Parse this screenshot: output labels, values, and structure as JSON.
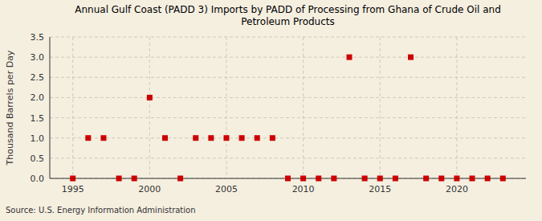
{
  "chart_data": {
    "type": "scatter",
    "title": "Annual Gulf Coast (PADD 3) Imports by PADD of Processing from Ghana of Crude Oil and\nPetroleum Products",
    "y_label": "Thousand Barrels per Day",
    "annotation": "Source: U.S. Energy Information Administration",
    "x": [
      1995,
      1996,
      1997,
      1998,
      1999,
      2000,
      2001,
      2002,
      2003,
      2004,
      2005,
      2006,
      2007,
      2008,
      2009,
      2010,
      2011,
      2012,
      2013,
      2014,
      2015,
      2016,
      2017,
      2018,
      2019,
      2020,
      2021,
      2022,
      2023
    ],
    "values": [
      0.0,
      1.0,
      1.0,
      0.0,
      0.0,
      2.0,
      1.0,
      0.0,
      1.0,
      1.0,
      1.0,
      1.0,
      1.0,
      1.0,
      0.0,
      0.0,
      0.0,
      0.0,
      3.0,
      0.0,
      0.0,
      0.0,
      3.0,
      0.0,
      0.0,
      0.0,
      0.0,
      0.0,
      0.0
    ],
    "color": "#cc0000",
    "marker": "square",
    "xlim": [
      1993.5,
      2024.5
    ],
    "ylim": [
      0.0,
      3.5
    ],
    "xticks": [
      1995,
      2000,
      2005,
      2010,
      2015,
      2020
    ],
    "yticks": [
      {
        "value": 0.0,
        "label": "0.0"
      },
      0.5,
      {
        "value": 1.0,
        "label": "1.0"
      },
      1.5,
      {
        "value": 2.0,
        "label": "2.0"
      },
      2.5,
      {
        "value": 3.0,
        "label": "3.0"
      },
      3.5
    ],
    "grid": true
  }
}
